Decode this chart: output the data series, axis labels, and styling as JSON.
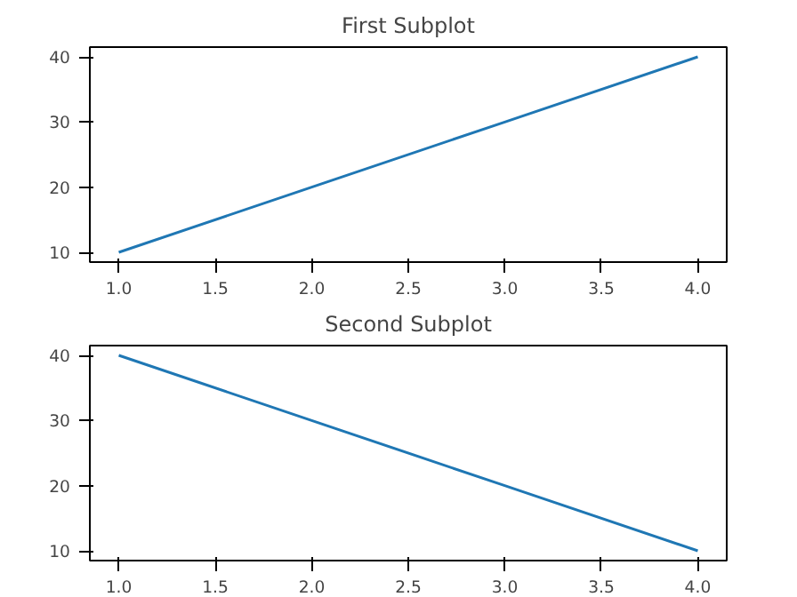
{
  "chart_data": [
    {
      "type": "line",
      "title": "First Subplot",
      "x": [
        1,
        2,
        3,
        4
      ],
      "series": [
        {
          "color": "#1f77b4",
          "values": [
            10,
            20,
            30,
            40
          ]
        }
      ],
      "xlim": [
        0.85,
        4.15
      ],
      "ylim": [
        8.5,
        41.5
      ],
      "xticks": [
        {
          "value": 1,
          "label": "1.0"
        },
        {
          "value": 1.5,
          "label": "1.5"
        },
        {
          "value": 2,
          "label": "2.0"
        },
        {
          "value": 2.5,
          "label": "2.5"
        },
        {
          "value": 3,
          "label": "3.0"
        },
        {
          "value": 3.5,
          "label": "3.5"
        },
        {
          "value": 4,
          "label": "4.0"
        }
      ],
      "yticks": [
        10,
        20,
        30,
        40
      ],
      "grid": false
    },
    {
      "type": "line",
      "title": "Second Subplot",
      "x": [
        1,
        2,
        3,
        4
      ],
      "series": [
        {
          "color": "#1f77b4",
          "values": [
            40,
            30,
            20,
            10
          ]
        }
      ],
      "xlim": [
        0.85,
        4.15
      ],
      "ylim": [
        8.5,
        41.5
      ],
      "xticks": [
        {
          "value": 1,
          "label": "1.0"
        },
        {
          "value": 1.5,
          "label": "1.5"
        },
        {
          "value": 2,
          "label": "2.0"
        },
        {
          "value": 2.5,
          "label": "2.5"
        },
        {
          "value": 3,
          "label": "3.0"
        },
        {
          "value": 3.5,
          "label": "3.5"
        },
        {
          "value": 4,
          "label": "4.0"
        }
      ],
      "yticks": [
        10,
        20,
        30,
        40
      ],
      "grid": false
    }
  ]
}
